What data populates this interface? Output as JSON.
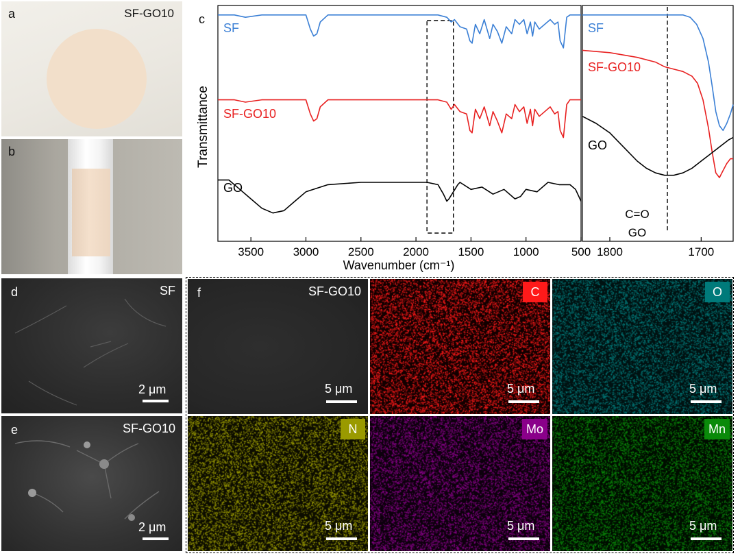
{
  "panels": {
    "a": {
      "letter": "a",
      "label": "SF-GO10"
    },
    "b": {
      "letter": "b"
    },
    "c": {
      "letter": "c"
    },
    "d": {
      "letter": "d",
      "label": "SF",
      "scale": "2 μm"
    },
    "e": {
      "letter": "e",
      "label": "SF-GO10",
      "scale": "2 μm"
    },
    "f": {
      "letter": "f",
      "label": "SF-GO10",
      "scale": "5 μm",
      "maps": [
        {
          "element": "C",
          "color": "#ff1a1a",
          "scale": "5 μm"
        },
        {
          "element": "O",
          "color": "#007a7a",
          "scale": "5 μm"
        },
        {
          "element": "N",
          "color": "#9a9a00",
          "scale": "5 μm"
        },
        {
          "element": "Mo",
          "color": "#8a008a",
          "scale": "5 μm"
        },
        {
          "element": "Mn",
          "color": "#0a8a0a",
          "scale": "5 μm"
        }
      ]
    }
  },
  "chart_data": [
    {
      "type": "line",
      "title": "",
      "xlabel": "Wavenumber (cm⁻¹)",
      "ylabel": "Transmittance",
      "xlim": [
        3800,
        500
      ],
      "x_ticks": [
        3500,
        3000,
        2500,
        2000,
        1500,
        1000,
        500
      ],
      "x_tick_labels": [
        "3500",
        "3000",
        "2500",
        "2000",
        "1500",
        "1000",
        "500"
      ],
      "y_ticks_shown": false,
      "highlight_box_x_range": [
        1900,
        1660
      ],
      "series": [
        {
          "name": "SF",
          "color": "#3a7fd5",
          "x": [
            3800,
            3650,
            3550,
            3400,
            3200,
            3000,
            2960,
            2930,
            2900,
            2870,
            2800,
            2700,
            2500,
            2000,
            1800,
            1720,
            1680,
            1650,
            1600,
            1540,
            1510,
            1490,
            1460,
            1420,
            1380,
            1330,
            1300,
            1260,
            1220,
            1180,
            1130,
            1100,
            1060,
            1020,
            990,
            960,
            940,
            920,
            880,
            830,
            780,
            740,
            710,
            690,
            660,
            630,
            600,
            550,
            500
          ],
          "y": [
            96,
            96,
            95,
            96,
            96,
            96,
            90,
            87,
            88,
            93,
            96,
            96,
            96,
            96,
            96,
            95,
            93,
            94,
            91,
            90,
            85,
            84,
            92,
            88,
            94,
            86,
            92,
            89,
            84,
            91,
            88,
            94,
            92,
            94,
            88,
            93,
            87,
            93,
            90,
            92,
            94,
            92,
            93,
            85,
            82,
            95,
            96,
            96,
            96
          ]
        },
        {
          "name": "SF-GO10",
          "color": "#e82020",
          "x": [
            3800,
            3650,
            3550,
            3400,
            3200,
            3000,
            2960,
            2930,
            2900,
            2870,
            2800,
            2700,
            2500,
            2000,
            1800,
            1720,
            1680,
            1650,
            1600,
            1540,
            1510,
            1490,
            1460,
            1420,
            1380,
            1330,
            1300,
            1260,
            1220,
            1180,
            1130,
            1100,
            1060,
            1020,
            990,
            960,
            940,
            920,
            880,
            830,
            780,
            740,
            710,
            690,
            660,
            630,
            600,
            550,
            500
          ],
          "y": [
            60,
            60,
            59,
            60,
            60,
            60,
            54,
            51,
            52,
            57,
            60,
            60,
            60,
            60,
            60,
            59,
            56,
            58,
            55,
            54,
            47,
            46,
            56,
            52,
            57,
            49,
            55,
            51,
            46,
            54,
            52,
            58,
            55,
            57,
            50,
            56,
            49,
            56,
            53,
            55,
            57,
            54,
            55,
            47,
            44,
            58,
            60,
            60,
            60
          ]
        },
        {
          "name": "GO",
          "color": "#000000",
          "x": [
            3800,
            3700,
            3600,
            3500,
            3400,
            3300,
            3200,
            3100,
            3000,
            2800,
            2500,
            2000,
            1900,
            1800,
            1750,
            1720,
            1700,
            1660,
            1620,
            1600,
            1500,
            1400,
            1300,
            1200,
            1100,
            1050,
            1000,
            900,
            800,
            700,
            600,
            550,
            500
          ],
          "y": [
            26,
            26,
            22,
            18,
            14,
            12,
            13,
            17,
            21,
            24,
            25,
            25,
            25,
            24,
            20,
            17,
            18,
            21,
            24,
            25,
            22,
            23,
            20,
            22,
            18,
            19,
            22,
            21,
            25,
            24,
            24,
            22,
            17
          ]
        }
      ],
      "annotations": [
        "SF",
        "SF-GO10",
        "GO"
      ]
    },
    {
      "type": "line",
      "title": "",
      "xlabel": "",
      "ylabel": "",
      "xlim": [
        1830,
        1665
      ],
      "x_ticks": [
        1800,
        1700
      ],
      "x_tick_labels": [
        "1800",
        "1700"
      ],
      "dashed_marker_x": 1737,
      "series": [
        {
          "name": "SF",
          "color": "#3a7fd5",
          "x": [
            1830,
            1800,
            1770,
            1740,
            1720,
            1712,
            1705,
            1698,
            1692,
            1688,
            1684,
            1680,
            1676,
            1672,
            1668,
            1665
          ],
          "y": [
            96,
            96,
            96,
            96,
            96,
            95,
            92,
            86,
            76,
            66,
            55,
            49,
            47,
            50,
            54,
            58
          ]
        },
        {
          "name": "SF-GO10",
          "color": "#e82020",
          "x": [
            1830,
            1800,
            1770,
            1750,
            1740,
            1730,
            1720,
            1710,
            1704,
            1698,
            1692,
            1688,
            1684,
            1680,
            1676,
            1672,
            1668,
            1665
          ],
          "y": [
            81,
            80,
            78,
            76,
            74,
            73,
            72,
            70,
            67,
            60,
            48,
            38,
            29,
            27,
            30,
            33,
            35,
            35
          ]
        },
        {
          "name": "GO",
          "color": "#000000",
          "x": [
            1830,
            1815,
            1800,
            1785,
            1770,
            1760,
            1750,
            1740,
            1730,
            1720,
            1710,
            1700,
            1690,
            1680,
            1670,
            1665
          ],
          "y": [
            53,
            50,
            46,
            40,
            34,
            31,
            29,
            28,
            28,
            29,
            31,
            34,
            37,
            40,
            43,
            44
          ]
        }
      ],
      "annotations": [
        "SF",
        "SF-GO10",
        "GO",
        "C=O",
        "GO"
      ]
    }
  ]
}
